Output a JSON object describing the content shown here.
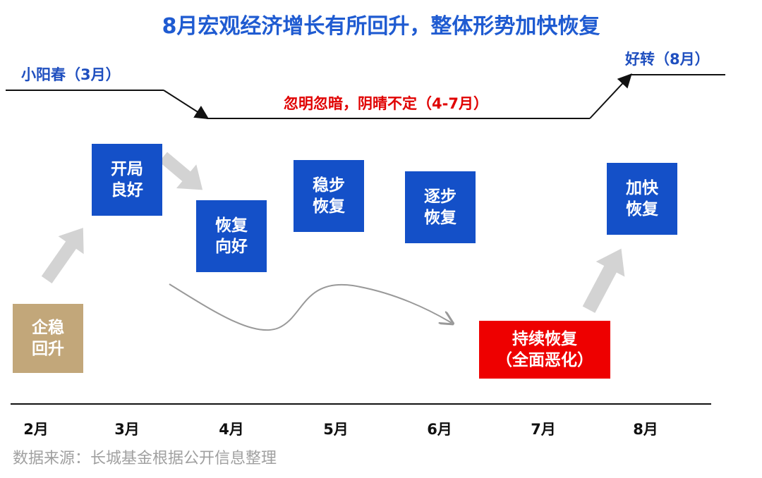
{
  "title": "8月宏观经济增长有所回升，整体形势加快恢复",
  "phases": {
    "spring": "小阳春（3月）",
    "volatile": "忽明忽暗，阴晴不定（4-7月）",
    "improve": "好转（8月）"
  },
  "boxes": {
    "feb": "企稳\n回升",
    "mar": "开局\n良好",
    "apr": "恢复\n向好",
    "may": "稳步\n恢复",
    "jun": "逐步\n恢复",
    "jul": "持续恢复\n（全面恶化）",
    "aug": "加快\n恢复"
  },
  "months": [
    "2月",
    "3月",
    "4月",
    "5月",
    "6月",
    "7月",
    "8月"
  ],
  "source": "数据来源：长城基金根据公开信息整理",
  "colors": {
    "title": "#1f5bd1",
    "box_blue": "#1450c8",
    "box_tan": "#c2a77a",
    "box_red": "#ee0000",
    "phase_red": "#e00000",
    "arrow_gray": "#d3d3d3"
  }
}
